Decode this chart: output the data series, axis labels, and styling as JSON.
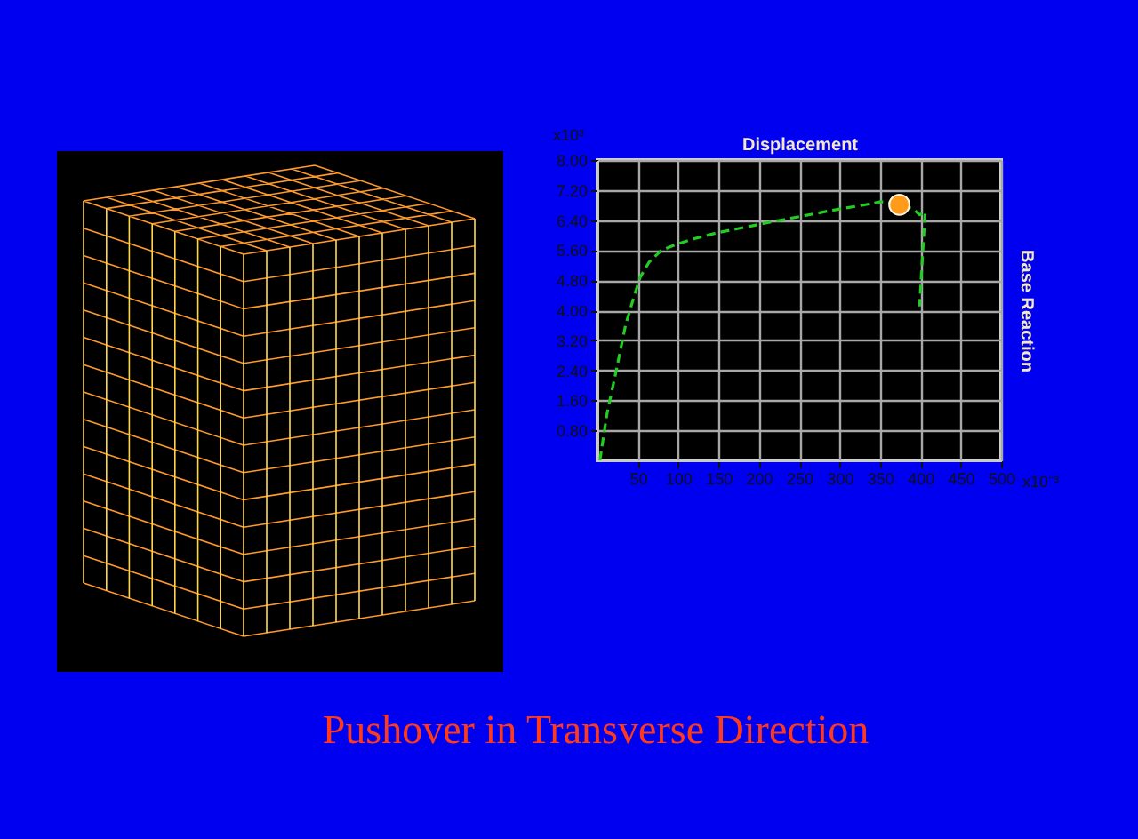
{
  "chart_data": {
    "type": "line",
    "title": "Pushover in Transverse Direction",
    "xlabel": "Displacement",
    "ylabel": "Base Reaction",
    "annotations": [
      "x10³",
      "x10⁻³"
    ],
    "series": [
      {
        "color": "#22cc22",
        "x": [
          3,
          12,
          23,
          35,
          46,
          53,
          64,
          79,
          97,
          119,
          148,
          178,
          215,
          252,
          288,
          332,
          351,
          374,
          391,
          399,
          406,
          402,
          399
        ],
        "values": [
          0,
          1.26,
          2.36,
          3.62,
          4.41,
          4.88,
          5.28,
          5.59,
          5.75,
          5.9,
          6.06,
          6.19,
          6.35,
          6.5,
          6.65,
          6.81,
          6.89,
          6.81,
          6.7,
          6.54,
          6.62,
          5.2,
          4.1
        ]
      },
      {
        "type": "scatter",
        "color": "#ff9a1a",
        "x": [
          374
        ],
        "values": [
          6.81
        ]
      }
    ],
    "xlim": [
      0,
      500
    ],
    "xticks": [
      50,
      100,
      150,
      200,
      250,
      300,
      350,
      400,
      450,
      500
    ],
    "ylim": [
      0,
      8
    ],
    "yticks": [
      {
        "value": 0.8,
        "label": "0.80"
      },
      {
        "value": 1.6,
        "label": "1.60"
      },
      {
        "value": 2.4,
        "label": "2.40"
      },
      {
        "value": 3.2,
        "label": "3.20"
      },
      {
        "value": 4,
        "label": "4.00"
      },
      {
        "value": 4.8,
        "label": "4.80"
      },
      {
        "value": 5.6,
        "label": "5.60"
      },
      {
        "value": 6.4,
        "label": "6.40"
      },
      {
        "value": 7.2,
        "label": "7.20"
      },
      {
        "value": 8,
        "label": "8.00"
      }
    ],
    "grid": true,
    "line_style": "dashed"
  }
}
